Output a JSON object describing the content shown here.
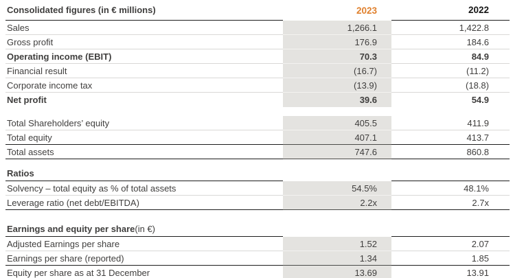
{
  "meta": {
    "description_label": "Consolidated financial figures table",
    "colors": {
      "accent_orange": "#e0802d",
      "band_gray": "#e4e3e0",
      "rule_dark": "#1c1c1c",
      "separator_light": "#d9d8d6",
      "text": "#3f3e3d"
    }
  },
  "table": {
    "header": {
      "label": "Consolidated figures (in € millions)",
      "year_current": "2023",
      "year_prior": "2022"
    },
    "rows": [
      {
        "type": "data",
        "label": "Sales",
        "v2023": "1,266.1",
        "v2022": "1,422.8",
        "bold": false,
        "border": "sep"
      },
      {
        "type": "data",
        "label": "Gross profit",
        "v2023": "176.9",
        "v2022": "184.6",
        "bold": false,
        "border": "sep"
      },
      {
        "type": "data",
        "label": "Operating income (EBIT)",
        "v2023": "70.3",
        "v2022": "84.9",
        "bold": true,
        "border": "sep"
      },
      {
        "type": "data",
        "label": "Financial result",
        "v2023": "(16.7)",
        "v2022": "(11.2)",
        "bold": false,
        "border": "sep"
      },
      {
        "type": "data",
        "label": "Corporate income tax",
        "v2023": "(13.9)",
        "v2022": "(18.8)",
        "bold": false,
        "border": "sep"
      },
      {
        "type": "data",
        "label": "Net profit",
        "v2023": "39.6",
        "v2022": "54.9",
        "bold": true,
        "border": "none"
      },
      {
        "type": "gap"
      },
      {
        "type": "data",
        "label": "Total Shareholders’ equity",
        "v2023": "405.5",
        "v2022": "411.9",
        "bold": false,
        "border": "sep"
      },
      {
        "type": "data",
        "label": "Total equity",
        "v2023": "407.1",
        "v2022": "413.7",
        "bold": false,
        "border": "dark"
      },
      {
        "type": "data",
        "label": "Total assets",
        "v2023": "747.6",
        "v2022": "860.8",
        "bold": false,
        "border": "dark"
      },
      {
        "type": "gap"
      },
      {
        "type": "section",
        "label": "Ratios",
        "suffix": ""
      },
      {
        "type": "data",
        "label": "Solvency – total equity as % of total assets",
        "v2023": "54.5%",
        "v2022": "48.1%",
        "bold": false,
        "border": "sep"
      },
      {
        "type": "data",
        "label": "Leverage ratio (net debt/EBITDA)",
        "v2023": "2.2x",
        "v2022": "2.7x",
        "bold": false,
        "border": "dark"
      },
      {
        "type": "gap",
        "size": "lg"
      },
      {
        "type": "section",
        "label": "Earnings and equity per share",
        "suffix": " (in €)"
      },
      {
        "type": "data",
        "label": "Adjusted Earnings per share",
        "v2023": "1.52",
        "v2022": "2.07",
        "bold": false,
        "border": "sep"
      },
      {
        "type": "data",
        "label": "Earnings per share (reported)",
        "v2023": "1.34",
        "v2022": "1.85",
        "bold": false,
        "border": "dark"
      },
      {
        "type": "data",
        "label": "Equity per share as at 31 December",
        "v2023": "13.69",
        "v2022": "13.91",
        "bold": false,
        "border": "none"
      }
    ]
  }
}
